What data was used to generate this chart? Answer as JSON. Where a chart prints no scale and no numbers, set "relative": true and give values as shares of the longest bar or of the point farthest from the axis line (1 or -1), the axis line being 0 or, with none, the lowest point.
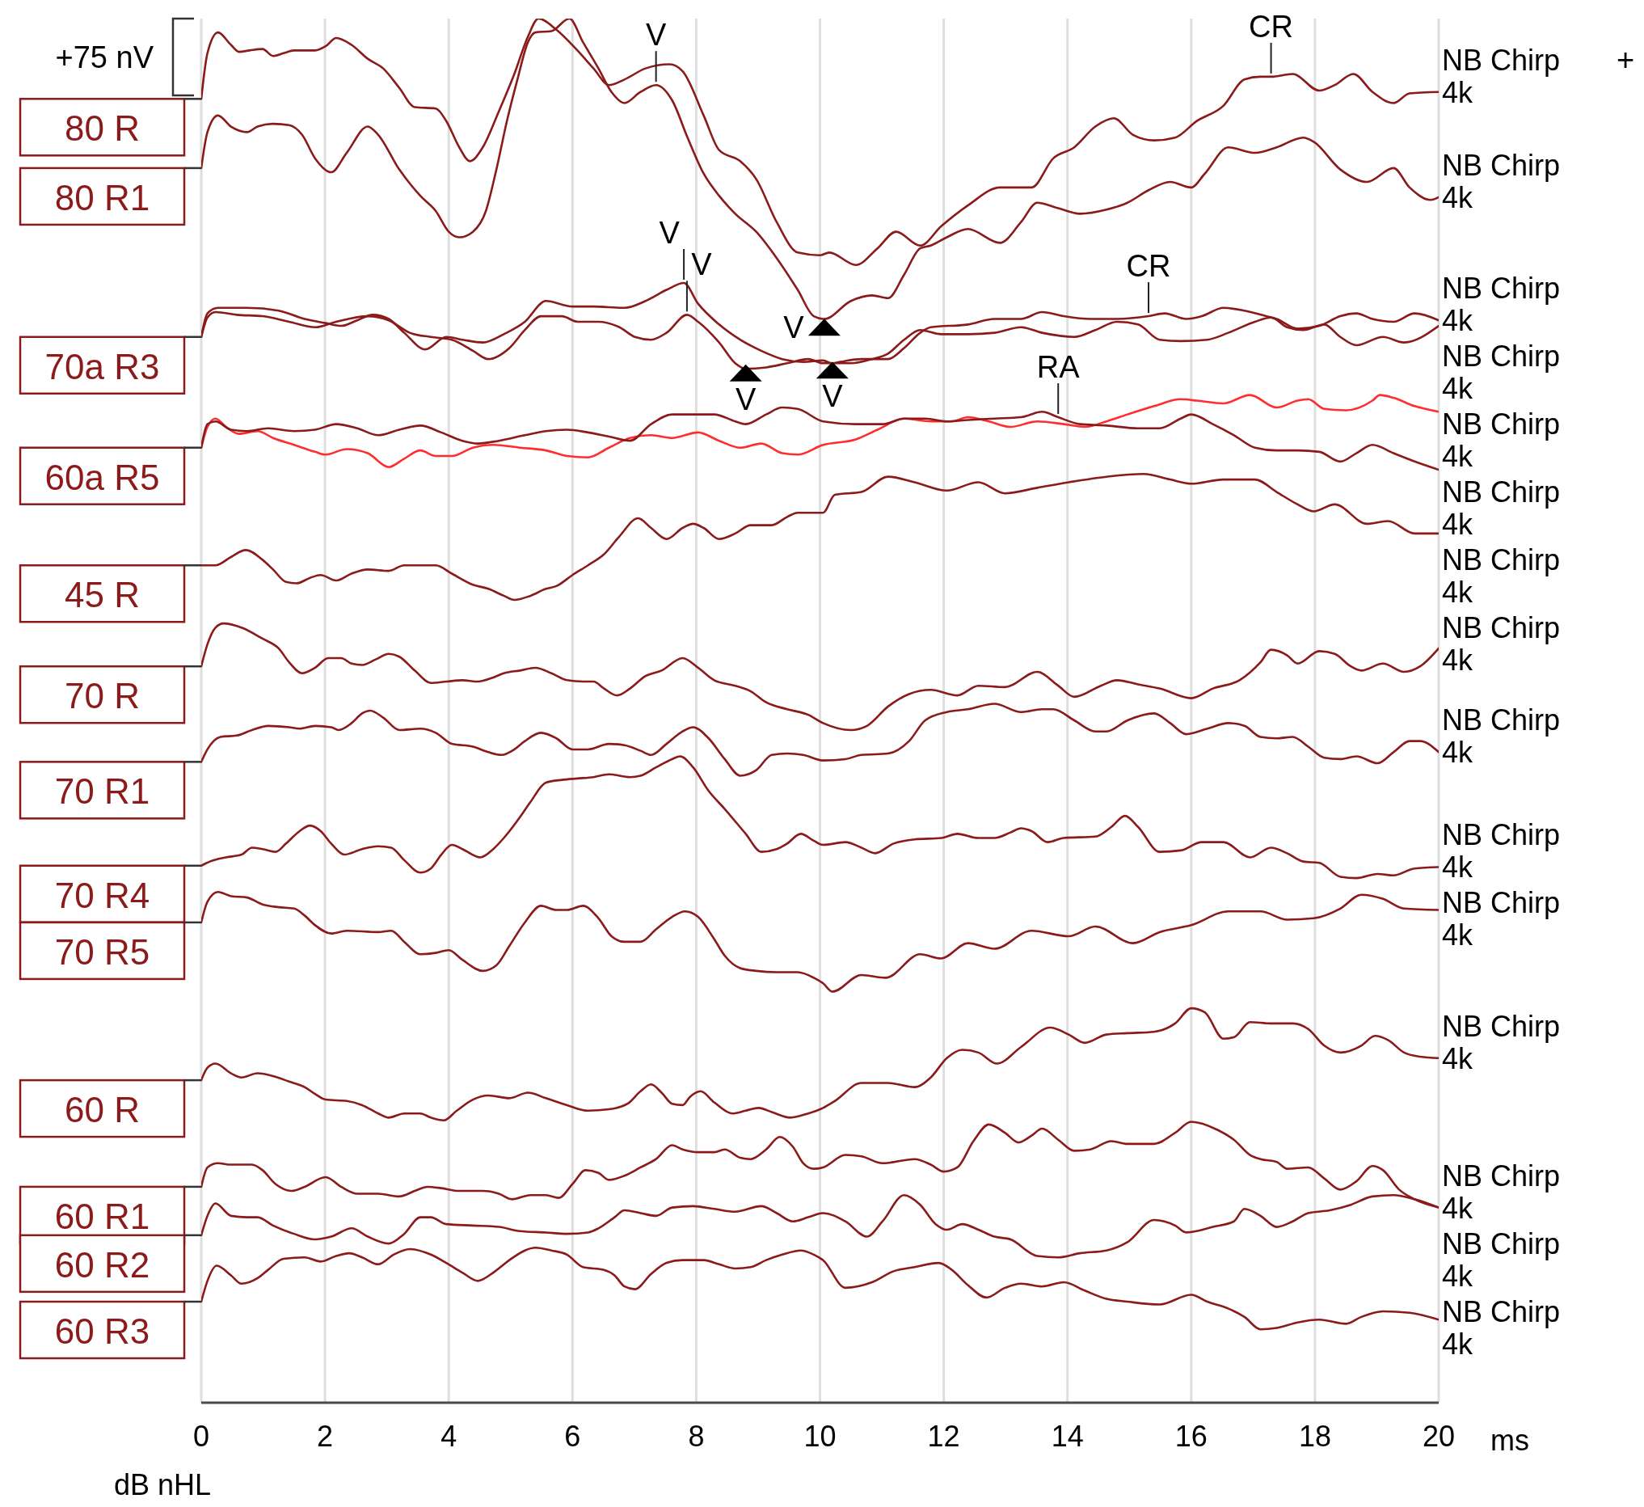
{
  "chart_data": {
    "type": "line",
    "relative": true,
    "xlabel": "ms",
    "ylabel": "dB nHL",
    "xlim": [
      0,
      20
    ],
    "xticks": [
      0,
      2,
      4,
      6,
      8,
      10,
      12,
      14,
      16,
      18,
      20
    ],
    "grid": "x",
    "legend": "left",
    "annotations": [
      "+75 nV",
      "+",
      {
        "text": "V",
        "x": 7.35,
        "y": 0.952
      },
      {
        "text": "CR",
        "x": 17.29,
        "y": 0.958
      },
      {
        "text": "V",
        "x": 7.8,
        "y": 0.809
      },
      {
        "text": "V",
        "x": 7.85,
        "y": 0.786
      },
      {
        "text": "CR",
        "x": 15.31,
        "y": 0.785
      },
      {
        "text": "V",
        "x": 8.8,
        "y": 0.742
      },
      {
        "text": "V",
        "x": 10.07,
        "y": 0.775
      },
      {
        "text": "V",
        "x": 10.2,
        "y": 0.744
      },
      {
        "text": "RA",
        "x": 13.85,
        "y": 0.712
      },
      {
        "text": "NB Chirp\n4k",
        "x": 20,
        "y": 0.947
      },
      {
        "text": "NB Chirp\n4k",
        "x": 20,
        "y": 0.871
      },
      {
        "text": "NB Chirp\n4k",
        "x": 20,
        "y": 0.782
      },
      {
        "text": "NB Chirp\n4k",
        "x": 20,
        "y": 0.778
      },
      {
        "text": "NB Chirp\n4k",
        "x": 20,
        "y": 0.716
      },
      {
        "text": "NB Chirp\n4k",
        "x": 20,
        "y": 0.674
      },
      {
        "text": "NB Chirp\n4k",
        "x": 20,
        "y": 0.628
      },
      {
        "text": "NB Chirp\n4k",
        "x": 20,
        "y": 0.545
      },
      {
        "text": "NB Chirp\n4k",
        "x": 20,
        "y": 0.47
      },
      {
        "text": "NB Chirp\n4k",
        "x": 20,
        "y": 0.387
      },
      {
        "text": "NB Chirp\n4k",
        "x": 20,
        "y": 0.356
      },
      {
        "text": "NB Chirp\n4k",
        "x": 20,
        "y": 0.249
      },
      {
        "text": "NB Chirp\n4k",
        "x": 20,
        "y": 0.141
      },
      {
        "text": "NB Chirp\n4k",
        "x": 20,
        "y": 0.141
      },
      {
        "text": "NB Chirp\n4k",
        "x": 20,
        "y": 0.06
      }
    ],
    "series": [
      {
        "name": "80 R",
        "color": "#8b1a1a",
        "x": [
          0,
          0.1,
          0.27,
          0.48,
          0.61,
          0.78,
          0.99,
          1.16,
          1.33,
          1.5,
          1.84,
          2.01,
          2.18,
          2.43,
          2.69,
          2.94,
          3.2,
          3.45,
          3.79,
          3.96,
          4.17,
          4.34,
          4.55,
          4.81,
          5.06,
          5.28,
          5.45,
          5.74,
          6.08,
          6.34,
          6.59,
          6.84,
          7.18,
          7.57,
          7.78,
          8.12,
          8.37,
          8.71,
          8.97,
          9.3,
          9.64,
          10,
          10.15,
          10.58,
          10.93,
          11.23,
          11.62,
          11.96,
          12.39,
          12.91,
          13.42,
          13.77,
          14.11,
          14.45,
          14.75,
          15.06,
          15.4,
          15.74,
          16.09,
          16.52,
          16.86,
          17.12,
          17.29,
          17.64,
          18.07,
          18.32,
          18.62,
          18.93,
          19.27,
          19.53,
          20
        ],
        "values": [
          0.942,
          0.975,
          0.99,
          0.981,
          0.976,
          0.977,
          0.978,
          0.973,
          0.975,
          0.977,
          0.977,
          0.98,
          0.986,
          0.981,
          0.971,
          0.964,
          0.95,
          0.936,
          0.935,
          0.926,
          0.907,
          0.897,
          0.907,
          0.933,
          0.96,
          0.987,
          1,
          0.992,
          0.977,
          0.964,
          0.952,
          0.956,
          0.964,
          0.967,
          0.962,
          0.93,
          0.905,
          0.897,
          0.884,
          0.853,
          0.831,
          0.829,
          0.831,
          0.822,
          0.834,
          0.846,
          0.836,
          0.85,
          0.865,
          0.878,
          0.878,
          0.899,
          0.907,
          0.922,
          0.928,
          0.916,
          0.912,
          0.914,
          0.926,
          0.937,
          0.956,
          0.958,
          0.958,
          0.96,
          0.948,
          0.952,
          0.96,
          0.947,
          0.939,
          0.946,
          0.947
        ]
      },
      {
        "name": "80 R1",
        "color": "#8b1a1a",
        "x": [
          0,
          0.1,
          0.27,
          0.48,
          0.74,
          0.91,
          1.16,
          1.42,
          1.63,
          1.84,
          2.1,
          2.35,
          2.69,
          2.86,
          3.2,
          3.54,
          3.79,
          4,
          4.17,
          4.39,
          4.6,
          4.77,
          4.94,
          5.11,
          5.28,
          5.4,
          5.66,
          5.95,
          6.17,
          6.42,
          6.63,
          6.84,
          7.1,
          7.35,
          7.61,
          7.86,
          8.12,
          8.37,
          8.63,
          8.97,
          9.3,
          9.64,
          9.9,
          10.07,
          10.5,
          10.84,
          11.1,
          11.36,
          11.62,
          11.79,
          12.05,
          12.39,
          12.91,
          13.25,
          13.51,
          13.85,
          14.2,
          14.63,
          14.97,
          15.31,
          15.66,
          16,
          16.22,
          16.6,
          17.03,
          17.38,
          17.81,
          17.98,
          18.41,
          18.84,
          19.27,
          19.53,
          19.87,
          20
        ],
        "values": [
          0.892,
          0.918,
          0.93,
          0.922,
          0.918,
          0.922,
          0.924,
          0.923,
          0.916,
          0.899,
          0.889,
          0.903,
          0.922,
          0.916,
          0.891,
          0.872,
          0.861,
          0.846,
          0.842,
          0.846,
          0.861,
          0.891,
          0.926,
          0.956,
          0.983,
          0.99,
          0.991,
          1,
          0.983,
          0.964,
          0.947,
          0.939,
          0.947,
          0.952,
          0.941,
          0.914,
          0.888,
          0.872,
          0.859,
          0.846,
          0.827,
          0.804,
          0.785,
          0.783,
          0.796,
          0.8,
          0.798,
          0.815,
          0.834,
          0.836,
          0.842,
          0.848,
          0.838,
          0.853,
          0.867,
          0.863,
          0.859,
          0.862,
          0.867,
          0.876,
          0.882,
          0.878,
          0.888,
          0.907,
          0.903,
          0.907,
          0.914,
          0.911,
          0.891,
          0.882,
          0.892,
          0.878,
          0.869,
          0.871
        ]
      },
      {
        "name": "70a R3",
        "color": "#8b1a1a",
        "x": [
          0,
          0.1,
          0.27,
          0.74,
          1.25,
          1.67,
          2.01,
          2.26,
          2.52,
          2.77,
          3.03,
          3.28,
          3.62,
          3.96,
          4.22,
          4.55,
          4.89,
          5.23,
          5.57,
          6,
          6.34,
          6.84,
          7.18,
          7.52,
          7.8,
          8.03,
          8.37,
          8.71,
          9.05,
          9.39,
          9.73,
          10.05,
          10.2,
          10.33,
          10.67,
          11.1,
          11.36,
          11.62,
          11.79,
          12.39,
          12.82,
          13.25,
          13.59,
          13.94,
          14.37,
          14.8,
          15.31,
          15.57,
          15.92,
          16.17,
          16.52,
          16.86,
          17.21,
          17.38,
          17.72,
          18.07,
          18.41,
          18.67,
          18.93,
          19.27,
          19.61,
          20
        ],
        "values": [
          0.77,
          0.787,
          0.791,
          0.791,
          0.789,
          0.783,
          0.78,
          0.778,
          0.782,
          0.786,
          0.783,
          0.773,
          0.761,
          0.77,
          0.768,
          0.766,
          0.772,
          0.781,
          0.796,
          0.792,
          0.792,
          0.791,
          0.796,
          0.804,
          0.809,
          0.794,
          0.779,
          0.768,
          0.76,
          0.754,
          0.752,
          0.753,
          0.751,
          0.752,
          0.754,
          0.754,
          0.762,
          0.773,
          0.777,
          0.779,
          0.783,
          0.783,
          0.788,
          0.785,
          0.783,
          0.783,
          0.785,
          0.787,
          0.783,
          0.785,
          0.791,
          0.789,
          0.785,
          0.783,
          0.776,
          0.778,
          0.785,
          0.787,
          0.783,
          0.781,
          0.787,
          0.782
        ]
      },
      {
        "color": "#8b1a1a",
        "x": [
          0,
          0.1,
          0.23,
          0.57,
          0.99,
          1.42,
          1.84,
          2.18,
          2.69,
          3.03,
          3.37,
          3.71,
          4.05,
          4.39,
          4.64,
          4.98,
          5.23,
          5.49,
          5.83,
          6.08,
          6.42,
          6.76,
          7.01,
          7.27,
          7.52,
          7.85,
          8.03,
          8.37,
          8.63,
          8.8,
          9.13,
          9.47,
          9.81,
          10.05,
          10.5,
          10.84,
          11.1,
          11.36,
          11.62,
          11.96,
          12.39,
          12.82,
          13.25,
          13.59,
          14.11,
          14.45,
          14.8,
          15.14,
          15.49,
          15.83,
          16.26,
          16.6,
          17.03,
          17.29,
          17.55,
          17.81,
          18.15,
          18.41,
          18.67,
          19.1,
          19.44,
          20
        ],
        "values": [
          0.77,
          0.784,
          0.788,
          0.786,
          0.785,
          0.781,
          0.777,
          0.781,
          0.785,
          0.782,
          0.773,
          0.77,
          0.768,
          0.76,
          0.754,
          0.762,
          0.775,
          0.785,
          0.785,
          0.781,
          0.781,
          0.777,
          0.77,
          0.768,
          0.773,
          0.786,
          0.781,
          0.766,
          0.751,
          0.747,
          0.748,
          0.751,
          0.754,
          0.751,
          0.751,
          0.754,
          0.758,
          0.768,
          0.775,
          0.772,
          0.772,
          0.773,
          0.777,
          0.773,
          0.77,
          0.775,
          0.781,
          0.779,
          0.768,
          0.767,
          0.768,
          0.773,
          0.781,
          0.784,
          0.777,
          0.775,
          0.779,
          0.77,
          0.764,
          0.77,
          0.766,
          0.778
        ]
      },
      {
        "color": "#ff2d2d",
        "x": [
          0,
          0.1,
          0.23,
          0.4,
          0.61,
          0.91,
          1.16,
          1.5,
          1.84,
          2.01,
          2.35,
          2.69,
          3.03,
          3.28,
          3.54,
          3.79,
          4.05,
          4.39,
          4.72,
          5.15,
          5.57,
          5.91,
          6.25,
          6.59,
          6.93,
          7.27,
          7.61,
          8.03,
          8.37,
          8.71,
          9.05,
          9.39,
          9.64,
          10.05,
          10.58,
          10.93,
          11.36,
          11.79,
          12.13,
          12.39,
          12.73,
          13.08,
          13.51,
          13.94,
          14.28,
          14.63,
          14.97,
          15.4,
          15.83,
          16.09,
          16.52,
          16.95,
          17.38,
          17.72,
          17.89,
          18.15,
          18.5,
          18.93,
          19.05,
          19.27,
          19.61,
          20
        ],
        "values": [
          0.69,
          0.705,
          0.711,
          0.705,
          0.7,
          0.702,
          0.697,
          0.692,
          0.687,
          0.685,
          0.689,
          0.686,
          0.676,
          0.682,
          0.688,
          0.684,
          0.684,
          0.69,
          0.692,
          0.69,
          0.688,
          0.684,
          0.683,
          0.69,
          0.697,
          0.699,
          0.697,
          0.701,
          0.695,
          0.69,
          0.693,
          0.686,
          0.685,
          0.692,
          0.696,
          0.703,
          0.711,
          0.709,
          0.709,
          0.712,
          0.709,
          0.705,
          0.709,
          0.707,
          0.705,
          0.709,
          0.714,
          0.72,
          0.725,
          0.724,
          0.722,
          0.728,
          0.719,
          0.724,
          0.725,
          0.718,
          0.717,
          0.724,
          0.728,
          0.726,
          0.72,
          0.716
        ]
      },
      {
        "name": "60a R5",
        "color": "#8b1a1a",
        "x": [
          0,
          0.1,
          0.23,
          0.48,
          0.74,
          1.08,
          1.5,
          1.84,
          2.18,
          2.52,
          2.86,
          3.2,
          3.54,
          3.88,
          4.22,
          4.47,
          4.81,
          5.23,
          5.57,
          5.91,
          6.25,
          6.59,
          6.93,
          7.27,
          7.61,
          7.95,
          8.29,
          8.63,
          8.8,
          9.13,
          9.39,
          9.64,
          10.05,
          10.58,
          11.01,
          11.36,
          11.7,
          12.05,
          12.39,
          12.82,
          13.25,
          13.59,
          13.85,
          14.2,
          14.63,
          15.14,
          15.49,
          15.83,
          16,
          16.35,
          16.69,
          17.03,
          17.38,
          17.72,
          18.07,
          18.41,
          18.67,
          18.93,
          19.27,
          19.61,
          20
        ],
        "values": [
          0.69,
          0.707,
          0.709,
          0.703,
          0.702,
          0.704,
          0.702,
          0.703,
          0.707,
          0.704,
          0.699,
          0.703,
          0.706,
          0.701,
          0.695,
          0.693,
          0.695,
          0.699,
          0.702,
          0.703,
          0.701,
          0.698,
          0.695,
          0.707,
          0.714,
          0.714,
          0.714,
          0.709,
          0.707,
          0.714,
          0.719,
          0.718,
          0.709,
          0.707,
          0.707,
          0.711,
          0.711,
          0.709,
          0.71,
          0.711,
          0.712,
          0.716,
          0.712,
          0.707,
          0.706,
          0.704,
          0.704,
          0.711,
          0.714,
          0.707,
          0.699,
          0.69,
          0.688,
          0.688,
          0.687,
          0.68,
          0.686,
          0.692,
          0.686,
          0.68,
          0.674
        ]
      },
      {
        "name": "45 R",
        "color": "#8b1a1a",
        "x": [
          0,
          0.23,
          0.48,
          0.72,
          0.99,
          1.16,
          1.37,
          1.54,
          1.76,
          1.93,
          2.18,
          2.43,
          2.69,
          3.03,
          3.28,
          3.54,
          3.79,
          4.05,
          4.39,
          4.64,
          4.89,
          5.06,
          5.32,
          5.57,
          5.74,
          6,
          6.25,
          6.51,
          6.76,
          7.06,
          7.27,
          7.52,
          7.78,
          7.95,
          8.12,
          8.37,
          8.63,
          8.88,
          9.22,
          9.47,
          9.64,
          10.05,
          10.24,
          10.67,
          11.1,
          11.53,
          12.05,
          12.56,
          12.99,
          13.51,
          14.02,
          14.63,
          15.23,
          15.66,
          16,
          16.52,
          17.03,
          17.38,
          17.72,
          17.98,
          18.32,
          18.84,
          19.18,
          19.61,
          20
        ],
        "values": [
          0.605,
          0.605,
          0.611,
          0.616,
          0.609,
          0.602,
          0.593,
          0.592,
          0.596,
          0.598,
          0.594,
          0.599,
          0.602,
          0.601,
          0.605,
          0.605,
          0.605,
          0.599,
          0.591,
          0.588,
          0.583,
          0.58,
          0.583,
          0.588,
          0.59,
          0.598,
          0.605,
          0.613,
          0.626,
          0.639,
          0.632,
          0.624,
          0.632,
          0.635,
          0.632,
          0.624,
          0.628,
          0.634,
          0.634,
          0.64,
          0.643,
          0.643,
          0.656,
          0.658,
          0.669,
          0.665,
          0.659,
          0.665,
          0.657,
          0.661,
          0.665,
          0.669,
          0.671,
          0.667,
          0.664,
          0.667,
          0.667,
          0.658,
          0.649,
          0.644,
          0.649,
          0.635,
          0.637,
          0.628,
          0.628
        ]
      },
      {
        "name": "70 R",
        "color": "#8b1a1a",
        "x": [
          0,
          0.1,
          0.23,
          0.36,
          0.65,
          0.99,
          1.25,
          1.42,
          1.63,
          1.84,
          2.05,
          2.26,
          2.43,
          2.6,
          2.82,
          3.03,
          3.2,
          3.45,
          3.71,
          3.96,
          4.22,
          4.47,
          4.72,
          4.89,
          5.15,
          5.4,
          5.66,
          5.91,
          6.17,
          6.34,
          6.51,
          6.72,
          6.93,
          7.18,
          7.44,
          7.78,
          8.03,
          8.29,
          8.63,
          8.88,
          9.13,
          9.47,
          9.81,
          10.05,
          10.5,
          10.76,
          11.1,
          11.44,
          11.79,
          12.22,
          12.56,
          12.99,
          13.51,
          13.85,
          14.11,
          14.54,
          14.8,
          15.14,
          15.49,
          16,
          16.35,
          16.78,
          17.12,
          17.29,
          17.55,
          17.72,
          18.07,
          18.32,
          18.58,
          18.75,
          19.1,
          19.44,
          19.7,
          20
        ],
        "values": [
          0.532,
          0.548,
          0.56,
          0.563,
          0.56,
          0.552,
          0.545,
          0.535,
          0.527,
          0.531,
          0.538,
          0.538,
          0.534,
          0.533,
          0.537,
          0.541,
          0.539,
          0.529,
          0.52,
          0.521,
          0.522,
          0.521,
          0.524,
          0.527,
          0.529,
          0.531,
          0.527,
          0.522,
          0.521,
          0.521,
          0.516,
          0.511,
          0.516,
          0.525,
          0.529,
          0.538,
          0.531,
          0.522,
          0.518,
          0.514,
          0.506,
          0.501,
          0.497,
          0.491,
          0.486,
          0.489,
          0.503,
          0.512,
          0.515,
          0.511,
          0.518,
          0.517,
          0.528,
          0.518,
          0.51,
          0.518,
          0.522,
          0.519,
          0.516,
          0.509,
          0.516,
          0.522,
          0.535,
          0.544,
          0.54,
          0.534,
          0.543,
          0.541,
          0.532,
          0.529,
          0.534,
          0.528,
          0.532,
          0.545
        ]
      },
      {
        "name": "70 R1",
        "color": "#8b1a1a",
        "x": [
          0,
          0.1,
          0.31,
          0.57,
          0.82,
          1.08,
          1.42,
          1.59,
          1.84,
          2.1,
          2.22,
          2.43,
          2.6,
          2.73,
          2.94,
          3.2,
          3.54,
          3.79,
          4.05,
          4.39,
          4.64,
          4.85,
          5.06,
          5.23,
          5.49,
          5.74,
          6,
          6.25,
          6.59,
          6.84,
          7.1,
          7.27,
          7.52,
          7.78,
          7.95,
          8.2,
          8.46,
          8.71,
          8.97,
          9.22,
          9.47,
          9.73,
          10.05,
          10.41,
          10.67,
          11.1,
          11.44,
          11.7,
          12.05,
          12.39,
          12.82,
          13.25,
          13.59,
          13.77,
          14.11,
          14.45,
          14.63,
          14.97,
          15.4,
          15.66,
          15.92,
          16.26,
          16.6,
          16.86,
          17.12,
          17.38,
          17.64,
          17.89,
          18.15,
          18.41,
          18.67,
          19.01,
          19.27,
          19.53,
          19.7,
          20
        ],
        "values": [
          0.463,
          0.472,
          0.481,
          0.482,
          0.486,
          0.489,
          0.488,
          0.487,
          0.489,
          0.488,
          0.486,
          0.491,
          0.498,
          0.5,
          0.495,
          0.486,
          0.487,
          0.484,
          0.476,
          0.474,
          0.47,
          0.468,
          0.472,
          0.478,
          0.484,
          0.48,
          0.472,
          0.472,
          0.476,
          0.475,
          0.471,
          0.468,
          0.476,
          0.485,
          0.488,
          0.48,
          0.465,
          0.453,
          0.457,
          0.468,
          0.469,
          0.468,
          0.464,
          0.465,
          0.468,
          0.469,
          0.478,
          0.493,
          0.499,
          0.501,
          0.505,
          0.499,
          0.501,
          0.501,
          0.493,
          0.485,
          0.485,
          0.493,
          0.498,
          0.491,
          0.483,
          0.487,
          0.491,
          0.489,
          0.481,
          0.48,
          0.481,
          0.474,
          0.466,
          0.465,
          0.467,
          0.462,
          0.47,
          0.478,
          0.478,
          0.47
        ]
      },
      {
        "name": "70 R4",
        "color": "#8b1a1a",
        "x": [
          0,
          0.14,
          0.4,
          0.65,
          0.82,
          0.99,
          1.2,
          1.37,
          1.59,
          1.76,
          1.93,
          2.1,
          2.31,
          2.6,
          2.86,
          3.07,
          3.28,
          3.54,
          3.71,
          3.88,
          4.05,
          4.22,
          4.51,
          4.72,
          4.89,
          5.15,
          5.32,
          5.57,
          5.83,
          6.08,
          6.34,
          6.59,
          6.93,
          7.1,
          7.35,
          7.61,
          7.74,
          7.95,
          8.2,
          8.46,
          8.8,
          9.05,
          9.3,
          9.47,
          9.69,
          9.9,
          10.05,
          10.41,
          10.67,
          10.89,
          11.19,
          11.53,
          11.96,
          12.22,
          12.56,
          12.82,
          13.08,
          13.25,
          13.42,
          13.68,
          13.94,
          14.45,
          14.71,
          14.93,
          15.14,
          15.49,
          15.83,
          16.17,
          16.52,
          16.95,
          17.29,
          17.55,
          17.81,
          18.07,
          18.41,
          18.67,
          19.01,
          19.27,
          19.61,
          20
        ],
        "values": [
          0.388,
          0.391,
          0.394,
          0.396,
          0.401,
          0.4,
          0.398,
          0.404,
          0.413,
          0.417,
          0.413,
          0.404,
          0.396,
          0.4,
          0.402,
          0.401,
          0.392,
          0.383,
          0.386,
          0.396,
          0.403,
          0.4,
          0.394,
          0.4,
          0.408,
          0.423,
          0.434,
          0.448,
          0.45,
          0.451,
          0.452,
          0.454,
          0.452,
          0.453,
          0.459,
          0.465,
          0.467,
          0.459,
          0.442,
          0.429,
          0.411,
          0.398,
          0.4,
          0.404,
          0.411,
          0.406,
          0.403,
          0.405,
          0.401,
          0.397,
          0.404,
          0.407,
          0.408,
          0.411,
          0.408,
          0.408,
          0.412,
          0.415,
          0.413,
          0.405,
          0.408,
          0.409,
          0.416,
          0.424,
          0.416,
          0.398,
          0.399,
          0.405,
          0.405,
          0.394,
          0.401,
          0.397,
          0.391,
          0.39,
          0.38,
          0.379,
          0.382,
          0.381,
          0.386,
          0.387
        ]
      },
      {
        "name": "70 R5",
        "color": "#8b1a1a",
        "x": [
          0,
          0.1,
          0.27,
          0.48,
          0.74,
          0.99,
          1.25,
          1.5,
          1.67,
          1.84,
          2.1,
          2.35,
          2.86,
          3.07,
          3.28,
          3.54,
          3.79,
          4,
          4.22,
          4.55,
          4.77,
          4.98,
          5.23,
          5.49,
          5.74,
          5.91,
          6.17,
          6.42,
          6.63,
          6.84,
          7.1,
          7.35,
          7.61,
          7.82,
          8.03,
          8.29,
          8.46,
          8.71,
          8.97,
          9.3,
          9.64,
          9.9,
          10.05,
          10.2,
          10.67,
          11.06,
          11.62,
          11.96,
          12.39,
          12.82,
          13.42,
          14.02,
          14.45,
          15.06,
          15.49,
          16,
          16.6,
          17.12,
          17.55,
          17.98,
          18.41,
          18.75,
          19.1,
          19.44,
          20
        ],
        "values": [
          0.347,
          0.362,
          0.369,
          0.366,
          0.365,
          0.36,
          0.358,
          0.357,
          0.352,
          0.345,
          0.339,
          0.341,
          0.34,
          0.341,
          0.333,
          0.324,
          0.325,
          0.327,
          0.32,
          0.312,
          0.316,
          0.33,
          0.347,
          0.359,
          0.356,
          0.356,
          0.359,
          0.35,
          0.337,
          0.333,
          0.333,
          0.342,
          0.351,
          0.355,
          0.351,
          0.335,
          0.323,
          0.314,
          0.312,
          0.311,
          0.311,
          0.307,
          0.303,
          0.297,
          0.309,
          0.307,
          0.324,
          0.321,
          0.332,
          0.328,
          0.341,
          0.337,
          0.344,
          0.332,
          0.34,
          0.345,
          0.355,
          0.355,
          0.349,
          0.35,
          0.357,
          0.367,
          0.364,
          0.357,
          0.356
        ]
      },
      {
        "name": "60 R",
        "color": "#8b1a1a",
        "x": [
          0,
          0.1,
          0.23,
          0.48,
          0.65,
          0.91,
          1.16,
          1.42,
          1.67,
          1.84,
          2.01,
          2.35,
          2.6,
          2.86,
          3.03,
          3.28,
          3.54,
          3.71,
          3.92,
          4.13,
          4.39,
          4.64,
          4.98,
          5.28,
          5.57,
          5.91,
          6.25,
          6.59,
          6.89,
          7.1,
          7.27,
          7.44,
          7.61,
          7.78,
          7.9,
          8.07,
          8.29,
          8.58,
          8.8,
          9.01,
          9.22,
          9.52,
          9.81,
          10.05,
          10.24,
          10.67,
          11.1,
          11.53,
          11.79,
          12.05,
          12.3,
          12.56,
          12.86,
          13.25,
          13.72,
          14.02,
          14.28,
          14.63,
          14.97,
          15.4,
          15.74,
          16,
          16.22,
          16.52,
          16.69,
          16.95,
          17.29,
          17.64,
          17.89,
          18.15,
          18.41,
          18.75,
          18.97,
          19.18,
          19.44,
          19.7,
          20
        ],
        "values": [
          0.233,
          0.242,
          0.245,
          0.238,
          0.235,
          0.238,
          0.236,
          0.232,
          0.228,
          0.223,
          0.219,
          0.218,
          0.215,
          0.209,
          0.206,
          0.209,
          0.209,
          0.206,
          0.204,
          0.211,
          0.219,
          0.222,
          0.22,
          0.224,
          0.22,
          0.215,
          0.211,
          0.212,
          0.216,
          0.225,
          0.23,
          0.224,
          0.216,
          0.215,
          0.221,
          0.225,
          0.217,
          0.209,
          0.211,
          0.213,
          0.21,
          0.206,
          0.209,
          0.213,
          0.218,
          0.231,
          0.231,
          0.228,
          0.235,
          0.249,
          0.255,
          0.253,
          0.245,
          0.257,
          0.271,
          0.266,
          0.26,
          0.266,
          0.267,
          0.268,
          0.274,
          0.285,
          0.282,
          0.263,
          0.264,
          0.275,
          0.274,
          0.274,
          0.27,
          0.258,
          0.253,
          0.258,
          0.265,
          0.262,
          0.253,
          0.25,
          0.249
        ]
      },
      {
        "name": "60 R1",
        "color": "#8b1a1a",
        "x": [
          0,
          0.1,
          0.27,
          0.48,
          0.82,
          0.99,
          1.2,
          1.46,
          1.67,
          2.01,
          2.26,
          2.52,
          2.86,
          3.2,
          3.45,
          3.66,
          3.88,
          4.17,
          4.55,
          4.81,
          5.02,
          5.32,
          5.57,
          5.78,
          6,
          6.21,
          6.42,
          6.59,
          6.84,
          7.1,
          7.35,
          7.61,
          7.78,
          8.03,
          8.29,
          8.46,
          8.71,
          8.88,
          9.13,
          9.35,
          9.56,
          9.73,
          9.9,
          10.05,
          10.41,
          10.67,
          11.01,
          11.53,
          11.79,
          12,
          12.22,
          12.48,
          12.73,
          12.99,
          13.21,
          13.42,
          13.59,
          13.85,
          14.11,
          14.37,
          14.71,
          14.97,
          15.4,
          15.74,
          16,
          16.43,
          16.69,
          16.95,
          17.12,
          17.38,
          17.55,
          17.89,
          18.15,
          18.41,
          18.67,
          18.93,
          19.1,
          19.36,
          19.61,
          20
        ],
        "values": [
          0.156,
          0.17,
          0.173,
          0.172,
          0.172,
          0.168,
          0.158,
          0.153,
          0.156,
          0.163,
          0.156,
          0.151,
          0.151,
          0.149,
          0.153,
          0.156,
          0.155,
          0.153,
          0.153,
          0.151,
          0.147,
          0.15,
          0.15,
          0.148,
          0.158,
          0.168,
          0.166,
          0.161,
          0.164,
          0.17,
          0.176,
          0.186,
          0.183,
          0.181,
          0.181,
          0.183,
          0.177,
          0.176,
          0.183,
          0.192,
          0.185,
          0.173,
          0.169,
          0.17,
          0.179,
          0.178,
          0.173,
          0.176,
          0.172,
          0.167,
          0.17,
          0.189,
          0.201,
          0.195,
          0.188,
          0.193,
          0.198,
          0.19,
          0.182,
          0.183,
          0.189,
          0.187,
          0.187,
          0.195,
          0.203,
          0.197,
          0.19,
          0.179,
          0.176,
          0.174,
          0.169,
          0.17,
          0.162,
          0.154,
          0.16,
          0.171,
          0.168,
          0.154,
          0.147,
          0.141
        ]
      },
      {
        "name": "60 R2",
        "color": "#8b1a1a",
        "x": [
          0,
          0.1,
          0.23,
          0.48,
          0.74,
          0.91,
          1.16,
          1.5,
          1.84,
          2.1,
          2.43,
          2.69,
          3.03,
          3.28,
          3.54,
          3.71,
          3.96,
          4.39,
          4.81,
          5.15,
          5.57,
          5.91,
          6.25,
          6.42,
          6.68,
          6.84,
          7.1,
          7.35,
          7.61,
          7.95,
          8.29,
          8.63,
          9.05,
          9.3,
          9.56,
          9.81,
          10.05,
          10.41,
          10.76,
          11.01,
          11.36,
          11.62,
          11.87,
          12.05,
          12.3,
          12.56,
          12.82,
          13.08,
          13.51,
          13.85,
          14.2,
          14.63,
          14.97,
          15.4,
          15.74,
          15.92,
          16.35,
          16.69,
          16.86,
          17.12,
          17.38,
          17.64,
          17.89,
          18.24,
          18.58,
          18.93,
          19.27,
          19.61,
          20
        ],
        "values": [
          0.121,
          0.135,
          0.144,
          0.135,
          0.134,
          0.134,
          0.128,
          0.122,
          0.118,
          0.12,
          0.126,
          0.12,
          0.115,
          0.122,
          0.134,
          0.134,
          0.129,
          0.128,
          0.127,
          0.124,
          0.123,
          0.122,
          0.123,
          0.126,
          0.134,
          0.139,
          0.137,
          0.135,
          0.141,
          0.142,
          0.14,
          0.138,
          0.142,
          0.137,
          0.131,
          0.134,
          0.137,
          0.131,
          0.12,
          0.131,
          0.15,
          0.143,
          0.129,
          0.125,
          0.129,
          0.125,
          0.12,
          0.118,
          0.106,
          0.105,
          0.108,
          0.11,
          0.116,
          0.132,
          0.128,
          0.123,
          0.127,
          0.131,
          0.14,
          0.135,
          0.127,
          0.131,
          0.137,
          0.139,
          0.143,
          0.149,
          0.15,
          0.147,
          0.141
        ]
      },
      {
        "name": "60 R3",
        "color": "#8b1a1a",
        "x": [
          0,
          0.1,
          0.25,
          0.48,
          0.65,
          0.91,
          1.08,
          1.33,
          1.67,
          1.93,
          2.18,
          2.39,
          2.6,
          2.86,
          3.11,
          3.37,
          3.71,
          3.96,
          4.22,
          4.47,
          4.72,
          4.98,
          5.23,
          5.4,
          5.66,
          5.91,
          6.17,
          6.51,
          6.68,
          6.84,
          7.01,
          7.27,
          7.52,
          7.78,
          8.12,
          8.37,
          8.63,
          8.88,
          9.13,
          9.39,
          9.69,
          9.9,
          10.05,
          10.41,
          10.84,
          11.19,
          11.53,
          11.92,
          12.13,
          12.39,
          12.69,
          12.99,
          13.25,
          13.59,
          13.94,
          14.28,
          14.63,
          14.97,
          15.49,
          16,
          16.26,
          16.6,
          16.86,
          17.12,
          17.38,
          17.72,
          18.07,
          18.5,
          18.75,
          19.1,
          19.53,
          20
        ],
        "values": [
          0.073,
          0.088,
          0.099,
          0.092,
          0.086,
          0.09,
          0.096,
          0.104,
          0.105,
          0.102,
          0.106,
          0.108,
          0.105,
          0.1,
          0.107,
          0.111,
          0.107,
          0.101,
          0.094,
          0.088,
          0.094,
          0.103,
          0.11,
          0.112,
          0.11,
          0.107,
          0.098,
          0.096,
          0.092,
          0.084,
          0.082,
          0.093,
          0.101,
          0.103,
          0.103,
          0.1,
          0.097,
          0.098,
          0.103,
          0.107,
          0.11,
          0.107,
          0.103,
          0.083,
          0.087,
          0.095,
          0.098,
          0.101,
          0.096,
          0.085,
          0.076,
          0.083,
          0.086,
          0.084,
          0.087,
          0.081,
          0.075,
          0.073,
          0.071,
          0.078,
          0.073,
          0.068,
          0.062,
          0.053,
          0.054,
          0.058,
          0.06,
          0.057,
          0.062,
          0.066,
          0.065,
          0.06
        ]
      },
      {
        "type": "scatter",
        "color": "#000000",
        "marker": "triangle",
        "x": [
          8.8,
          10.07,
          10.2
        ],
        "values": [
          0.742,
          0.775,
          0.744
        ]
      }
    ]
  }
}
